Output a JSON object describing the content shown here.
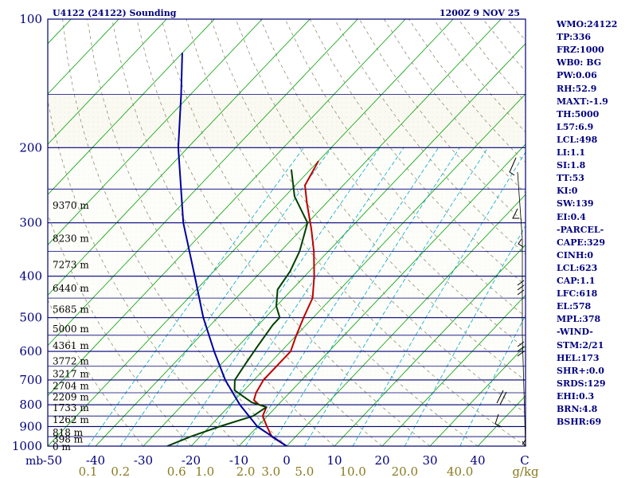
{
  "chart_data": {
    "type": "skewt_log_p",
    "title": "U4122 (24122) Sounding",
    "valid_time": "1200Z  9 NOV 25",
    "pressure_axis": {
      "label": "mb",
      "range": [
        1000,
        100
      ],
      "ticks": [
        100,
        200,
        300,
        400,
        500,
        600,
        700,
        800,
        900,
        1000
      ]
    },
    "temperature_axis": {
      "unit": "C",
      "range": [
        -50,
        50
      ],
      "ticks": [
        -50,
        -40,
        -30,
        -20,
        -10,
        0,
        10,
        20,
        30,
        40
      ]
    },
    "mixing_ratio_axis": {
      "unit": "g/kg",
      "ticks": [
        "0.1",
        "0.2",
        "0.6",
        "1.0",
        "2.0",
        "3.0",
        "5.0",
        "10.0",
        "20.0",
        "40.0"
      ],
      "values": [
        0.1,
        0.2,
        0.6,
        1.0,
        2.0,
        3.0,
        5.0,
        10.0,
        20.0,
        40.0
      ]
    },
    "height_labels": [
      {
        "p": 1000,
        "label": "0 m"
      },
      {
        "p": 960,
        "label": "398 m"
      },
      {
        "p": 925,
        "label": "818 m"
      },
      {
        "p": 865,
        "label": "1262 m"
      },
      {
        "p": 810,
        "label": "1733 m"
      },
      {
        "p": 765,
        "label": "2209 m"
      },
      {
        "p": 720,
        "label": "2704 m"
      },
      {
        "p": 675,
        "label": "3217 m"
      },
      {
        "p": 630,
        "label": "3772 m"
      },
      {
        "p": 580,
        "label": "4361 m"
      },
      {
        "p": 530,
        "label": "5000 m"
      },
      {
        "p": 477,
        "label": "5685 m"
      },
      {
        "p": 425,
        "label": "6440 m"
      },
      {
        "p": 375,
        "label": "7273 m"
      },
      {
        "p": 325,
        "label": "8230 m"
      },
      {
        "p": 272,
        "label": "9370 m"
      }
    ],
    "series": [
      {
        "name": "temperature",
        "color": "#c00000",
        "points": [
          [
            1000,
            0
          ],
          [
            950,
            -5
          ],
          [
            900,
            -8
          ],
          [
            850,
            -11
          ],
          [
            810,
            -12
          ],
          [
            800,
            -14
          ],
          [
            780,
            -16
          ],
          [
            750,
            -17
          ],
          [
            700,
            -18
          ],
          [
            650,
            -18
          ],
          [
            600,
            -18
          ],
          [
            550,
            -20
          ],
          [
            500,
            -22
          ],
          [
            450,
            -24
          ],
          [
            400,
            -28
          ],
          [
            350,
            -33
          ],
          [
            310,
            -38
          ],
          [
            270,
            -44
          ],
          [
            245,
            -48
          ],
          [
            215,
            -50
          ]
        ]
      },
      {
        "name": "dewpoint",
        "color": "#004000",
        "points": [
          [
            1000,
            -25
          ],
          [
            950,
            -22
          ],
          [
            900,
            -18
          ],
          [
            850,
            -13
          ],
          [
            810,
            -12
          ],
          [
            790,
            -16
          ],
          [
            740,
            -22
          ],
          [
            700,
            -24
          ],
          [
            640,
            -25
          ],
          [
            580,
            -26
          ],
          [
            520,
            -27
          ],
          [
            500,
            -27
          ],
          [
            470,
            -30
          ],
          [
            430,
            -33
          ],
          [
            390,
            -34
          ],
          [
            350,
            -36
          ],
          [
            300,
            -40
          ],
          [
            260,
            -48
          ],
          [
            225,
            -54
          ]
        ]
      },
      {
        "name": "parcel",
        "color": "#0000a0",
        "points": [
          [
            1000,
            0
          ],
          [
            900,
            -10
          ],
          [
            800,
            -18
          ],
          [
            700,
            -26
          ],
          [
            600,
            -34
          ],
          [
            500,
            -43
          ],
          [
            400,
            -53
          ],
          [
            300,
            -66
          ],
          [
            200,
            -82
          ],
          [
            150,
            -92
          ],
          [
            120,
            -100
          ]
        ]
      }
    ],
    "wind_barbs_note": "wind profile barbs plotted along right edge"
  },
  "indices": [
    "WMO:24122",
    "TP:336",
    "FRZ:1000",
    "WB0: BG",
    "PW:0.06",
    "RH:52.9",
    "MAXT:-1.9",
    "TH:5000",
    "L57:6.9",
    "LCL:498",
    "LI:1.1",
    "SI:1.8",
    "TT:53",
    "KI:0",
    "SW:139",
    "EI:0.4",
    "-PARCEL-",
    "CAPE:329",
    "CINH:0",
    "LCL:623",
    "CAP:1.1",
    "LFC:618",
    "EL:578",
    "MPL:378",
    "-WIND-",
    "STM:2/21",
    "HEL:173",
    "SHR+:0.0",
    "SRDS:129",
    "EHI:0.3",
    "BRN:4.8",
    "BSHR:69"
  ],
  "colors": {
    "frame": "#00007a",
    "isobar": "#00007a",
    "isotherm": "#00a000",
    "mixing_ratio": "#00aacc",
    "dry_adiabat": "#808060",
    "mixing_label": "#8a7a20"
  }
}
